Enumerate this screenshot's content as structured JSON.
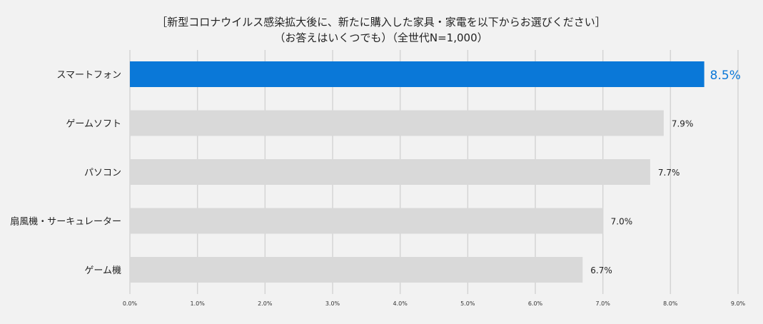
{
  "chart_data": {
    "type": "bar",
    "orientation": "horizontal",
    "title_line1": "［新型コロナウイルス感染拡大後に、新たに購入した家具・家電を以下からお選びください］",
    "title_line2": "（お答えはいくつでも）（全世代N=1,000）",
    "categories": [
      "スマートフォン",
      "ゲームソフト",
      "パソコン",
      "扇風機・サーキュレーター",
      "ゲーム機"
    ],
    "values": [
      8.5,
      7.9,
      7.7,
      7.0,
      6.7
    ],
    "value_labels": [
      "8.5%",
      "7.9%",
      "7.7%",
      "7.0%",
      "6.7%"
    ],
    "highlight_index": 0,
    "xlim": [
      0,
      9
    ],
    "xticks": [
      0,
      1,
      2,
      3,
      4,
      5,
      6,
      7,
      8,
      9
    ],
    "xtick_labels": [
      "0.0%",
      "1.0%",
      "2.0%",
      "3.0%",
      "4.0%",
      "5.0%",
      "6.0%",
      "7.0%",
      "8.0%",
      "9.0%"
    ],
    "grid": true,
    "colors": {
      "highlight": "#0a78d8",
      "bar": "#d9d9d9",
      "grid": "#d4d4d4",
      "highlight_label": "#0a78d8",
      "label": "#222222"
    }
  }
}
